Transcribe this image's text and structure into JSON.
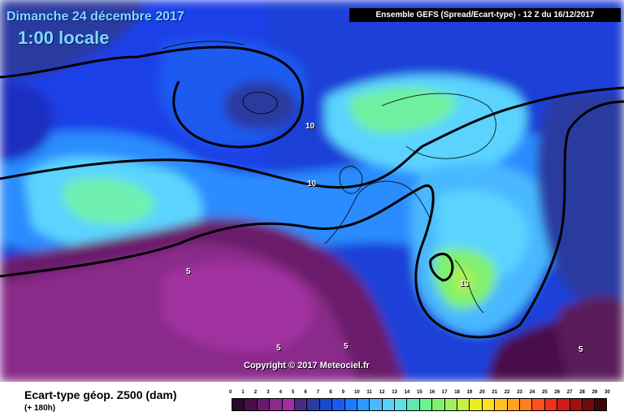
{
  "header": {
    "date": "Dimanche 24 décembre 2017",
    "time": "1:00 locale",
    "ensemble": "Ensemble GEFS  (Spread/Ecart-type) - 12 Z du 16/12/2017"
  },
  "copyright": "Copyright © 2017 Meteociel.fr",
  "contour_labels": [
    "10",
    "10",
    "5",
    "5",
    "5",
    "5",
    "13"
  ],
  "legend": {
    "title": "Ecart-type géop. Z500 (dam)",
    "subtitle": "(+ 180h)",
    "ticks": [
      "0",
      "1",
      "2",
      "3",
      "4",
      "5",
      "6",
      "7",
      "8",
      "9",
      "10",
      "11",
      "12",
      "13",
      "14",
      "15",
      "16",
      "17",
      "18",
      "19",
      "20",
      "21",
      "22",
      "23",
      "24",
      "25",
      "26",
      "27",
      "28",
      "29",
      "30"
    ],
    "colors": [
      "#2a0a2a",
      "#4a0f4a",
      "#6a1a6a",
      "#8a2a8a",
      "#a030a0",
      "#4a2a80",
      "#2a3aa0",
      "#1a4ad0",
      "#1a5af0",
      "#1a7aff",
      "#2a9aff",
      "#4ab8ff",
      "#5ad0ff",
      "#60e0e0",
      "#60e8b0",
      "#70f090",
      "#80f070",
      "#a0f060",
      "#c8f040",
      "#e8f020",
      "#ffe020",
      "#ffc020",
      "#ffa020",
      "#ff8020",
      "#ff5020",
      "#f03020",
      "#d01a1a",
      "#a01010",
      "#700a0a",
      "#400505"
    ]
  }
}
